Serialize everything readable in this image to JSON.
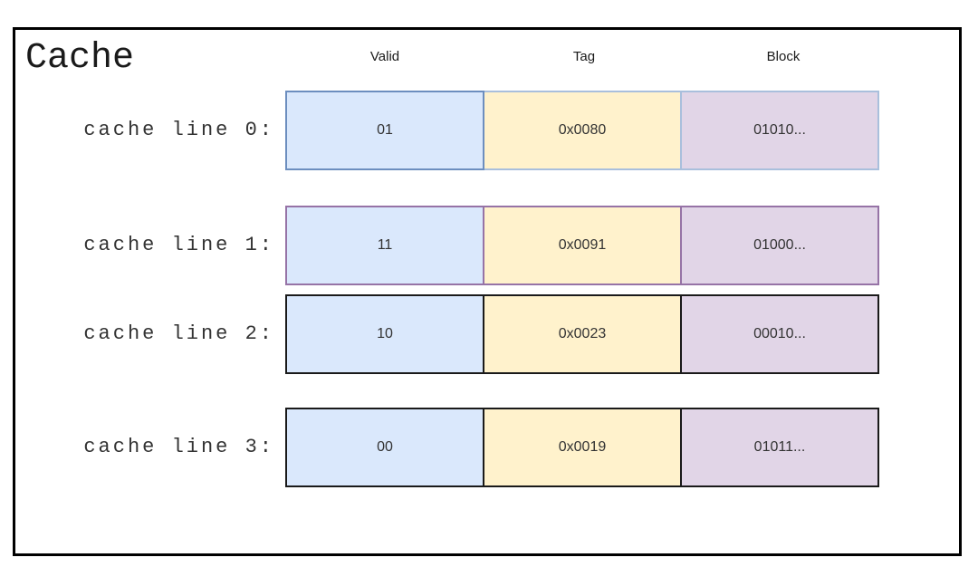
{
  "diagram": {
    "title": "Cache",
    "columns": [
      {
        "id": "valid",
        "label": "Valid"
      },
      {
        "id": "tag",
        "label": "Tag"
      },
      {
        "id": "block",
        "label": "Block"
      }
    ],
    "rows": [
      {
        "label": "cache line 0:",
        "valid": "01",
        "tag": "0x0080",
        "block": "01010...",
        "stroke": "#6C8EBF",
        "stroke_secondary": "#A9BFDC"
      },
      {
        "label": "cache line 1:",
        "valid": "11",
        "tag": "0x0091",
        "block": "01000...",
        "stroke": "#9673A6",
        "stroke_secondary": "#9673A6"
      },
      {
        "label": "cache line 2:",
        "valid": "10",
        "tag": "0x0023",
        "block": "00010...",
        "stroke": "#1A1A1A",
        "stroke_secondary": "#1A1A1A"
      },
      {
        "label": "cache line 3:",
        "valid": "00",
        "tag": "0x0019",
        "block": "01011...",
        "stroke": "#1A1A1A",
        "stroke_secondary": "#1A1A1A"
      }
    ],
    "colors": {
      "valid_fill": "#DAE8FC",
      "tag_fill": "#FFF2CC",
      "block_fill": "#E1D5E7",
      "frame_border": "#000000",
      "text": "#333333"
    }
  }
}
